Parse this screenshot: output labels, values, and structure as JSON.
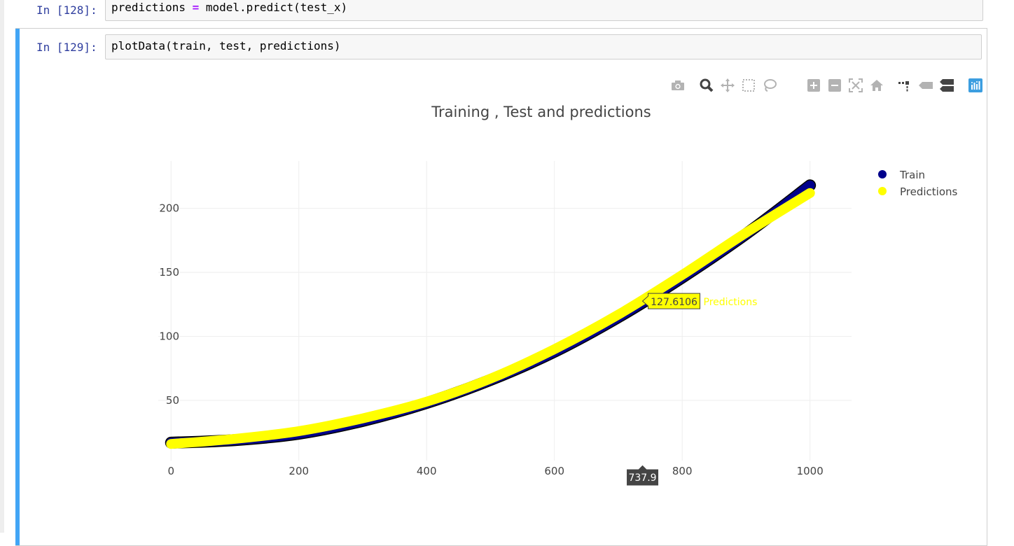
{
  "cells": [
    {
      "prompt": "In [128]:",
      "code_before": "predictions ",
      "op": "=",
      "code_after": " model.predict(test_x)"
    },
    {
      "prompt": "In [129]:",
      "code": "plotData(train, test, predictions)"
    }
  ],
  "modebar": {
    "icons": [
      "camera-icon",
      "zoom-icon",
      "pan-icon",
      "box-select-icon",
      "lasso-select-icon",
      "zoom-in-icon",
      "zoom-out-icon",
      "autoscale-icon",
      "reset-axes-icon",
      "spike-lines-icon",
      "hover-closest-icon",
      "hover-compare-icon",
      "plotly-logo-icon"
    ]
  },
  "chart_data": {
    "type": "line",
    "title": "Training , Test and predictions",
    "xlabel": "",
    "ylabel": "",
    "xlim": [
      -20,
      1065
    ],
    "ylim": [
      3,
      237
    ],
    "xticks": [
      0,
      200,
      400,
      600,
      800,
      1000
    ],
    "yticks": [
      50,
      100,
      150,
      200
    ],
    "grid": true,
    "legend_position": "top-right",
    "series": [
      {
        "name": "Train",
        "color": "#00008b",
        "x": [
          0,
          100,
          200,
          300,
          400,
          500,
          600,
          700,
          800,
          900,
          1000
        ],
        "y": [
          17,
          19,
          24,
          34,
          48,
          66,
          88,
          115,
          146,
          180,
          218
        ]
      },
      {
        "name": "Predictions",
        "color": "#ffff00",
        "x": [
          0,
          100,
          200,
          300,
          400,
          500,
          600,
          700,
          800,
          900,
          1000
        ],
        "y": [
          16,
          20,
          26,
          36,
          49,
          67,
          90,
          117,
          148,
          181,
          212
        ]
      }
    ],
    "hover": {
      "y_label": "127.6106",
      "series_label": "Predictions",
      "x_label": "737.9",
      "x": 737.9,
      "y": 127.6106
    }
  }
}
